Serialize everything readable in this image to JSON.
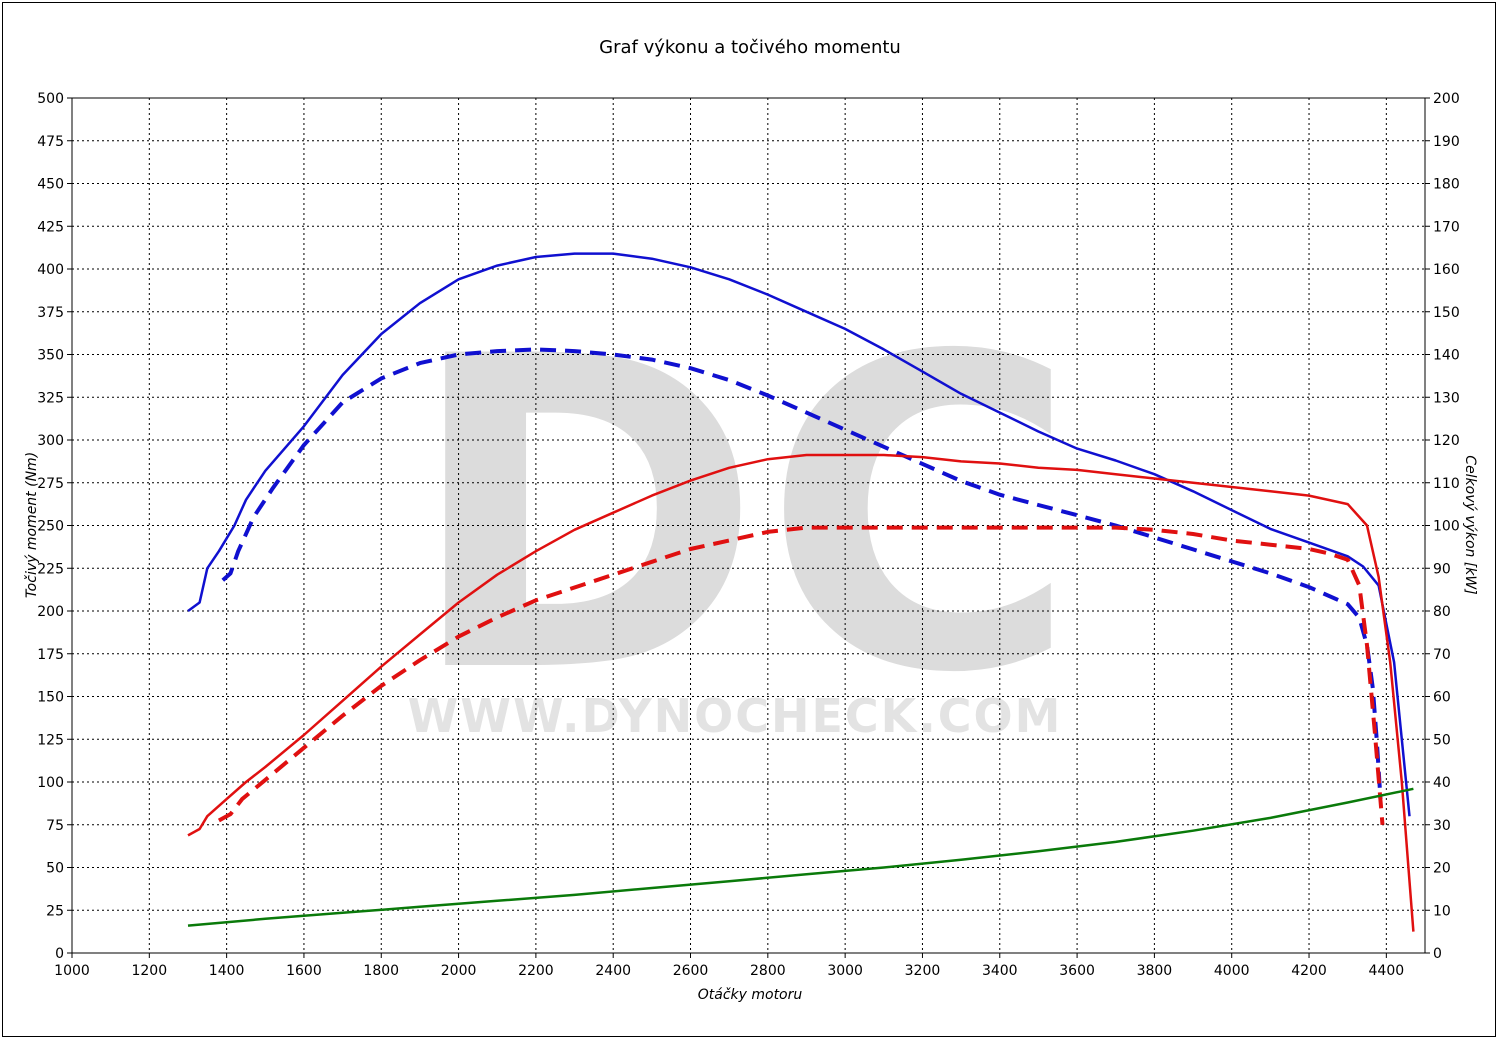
{
  "chart_data": {
    "type": "line",
    "title": "Graf výkonu a točivého momentu",
    "xlabel": "Otáčky motoru",
    "ylabel_left": "Točivý moment (Nm)",
    "ylabel_right": "Celkový výkon [kW]",
    "xlim": [
      1000,
      4500
    ],
    "ylim_left": [
      0,
      500
    ],
    "ylim_right": [
      0,
      200
    ],
    "x_ticks": [
      1000,
      1200,
      1400,
      1600,
      1800,
      2000,
      2200,
      2400,
      2600,
      2800,
      3000,
      3200,
      3400,
      3600,
      3800,
      4000,
      4200,
      4400
    ],
    "y_left_ticks": [
      0,
      25,
      50,
      75,
      100,
      125,
      150,
      175,
      200,
      225,
      250,
      275,
      300,
      325,
      350,
      375,
      400,
      425,
      450,
      475,
      500
    ],
    "y_right_ticks": [
      0,
      10,
      20,
      30,
      40,
      50,
      60,
      70,
      80,
      90,
      100,
      110,
      120,
      130,
      140,
      150,
      160,
      170,
      180,
      190,
      200
    ],
    "grid": true,
    "watermark": "DC",
    "watermark_url": "WWW.DYNOCHECK.COM",
    "colors": {
      "torque": "#1010d0",
      "power": "#e01010",
      "loss": "#0a7a0a"
    },
    "series": [
      {
        "axis": "left",
        "color": "#1010d0",
        "dash": false,
        "x": [
          1300,
          1330,
          1350,
          1380,
          1420,
          1450,
          1500,
          1600,
          1700,
          1800,
          1900,
          2000,
          2100,
          2200,
          2300,
          2400,
          2500,
          2600,
          2700,
          2800,
          2900,
          3000,
          3100,
          3200,
          3300,
          3400,
          3500,
          3600,
          3700,
          3800,
          3900,
          4000,
          4100,
          4200,
          4300,
          4340,
          4380,
          4420,
          4460
        ],
        "y": [
          200,
          205,
          225,
          235,
          250,
          265,
          282,
          308,
          338,
          362,
          380,
          394,
          402,
          407,
          409,
          409,
          406,
          401,
          394,
          385,
          375,
          365,
          353,
          340,
          327,
          316,
          305,
          295,
          288,
          280,
          270,
          259,
          248,
          240,
          232,
          226,
          215,
          170,
          80
        ]
      },
      {
        "axis": "left",
        "color": "#1010d0",
        "dash": true,
        "x": [
          1390,
          1410,
          1430,
          1470,
          1520,
          1600,
          1700,
          1800,
          1900,
          2000,
          2100,
          2200,
          2300,
          2400,
          2500,
          2600,
          2700,
          2800,
          2900,
          3000,
          3100,
          3200,
          3300,
          3400,
          3500,
          3600,
          3700,
          3800,
          3900,
          4000,
          4100,
          4200,
          4300,
          4330,
          4350,
          4365,
          4375,
          4385
        ],
        "y": [
          218,
          222,
          235,
          255,
          272,
          297,
          322,
          336,
          345,
          350,
          352,
          353,
          352,
          350,
          347,
          342,
          335,
          326,
          316,
          306,
          296,
          286,
          276,
          268,
          262,
          256,
          250,
          243,
          236,
          229,
          222,
          214,
          204,
          196,
          180,
          155,
          125,
          90
        ]
      },
      {
        "axis": "right",
        "color": "#e01010",
        "dash": false,
        "x": [
          1300,
          1330,
          1350,
          1400,
          1450,
          1500,
          1600,
          1700,
          1800,
          1900,
          2000,
          2100,
          2200,
          2300,
          2400,
          2500,
          2600,
          2700,
          2800,
          2900,
          3000,
          3100,
          3200,
          3300,
          3400,
          3500,
          3600,
          3700,
          3800,
          3900,
          4000,
          4100,
          4200,
          4300,
          4350,
          4380,
          4410,
          4440,
          4470
        ],
        "y": [
          27.5,
          29,
          32,
          36,
          40,
          43.5,
          51,
          59,
          67,
          74.5,
          82,
          88.5,
          94,
          99,
          103,
          107,
          110.5,
          113.5,
          115.5,
          116.5,
          116.5,
          116.5,
          116,
          115,
          114.5,
          113.5,
          113,
          112,
          111,
          110,
          109,
          108,
          107,
          105,
          100,
          88,
          68,
          40,
          5
        ]
      },
      {
        "axis": "right",
        "color": "#e01010",
        "dash": true,
        "x": [
          1380,
          1410,
          1440,
          1500,
          1600,
          1700,
          1800,
          1900,
          2000,
          2100,
          2200,
          2300,
          2400,
          2500,
          2600,
          2700,
          2800,
          2900,
          3000,
          3100,
          3200,
          3300,
          3400,
          3500,
          3600,
          3700,
          3800,
          3900,
          4000,
          4100,
          4200,
          4250,
          4300,
          4330,
          4350,
          4370,
          4390
        ],
        "y": [
          31,
          32.5,
          36,
          40.5,
          48,
          55.5,
          62.5,
          68.5,
          74,
          78.5,
          82.5,
          85.5,
          88.5,
          91.5,
          94.5,
          96.5,
          98.5,
          99.5,
          99.5,
          99.5,
          99.5,
          99.5,
          99.5,
          99.5,
          99.5,
          99.5,
          99,
          98,
          96.5,
          95.5,
          94.5,
          93.5,
          92,
          86,
          72,
          52,
          30
        ]
      },
      {
        "axis": "left",
        "color": "#0a7a0a",
        "dash": false,
        "x": [
          1300,
          1500,
          1700,
          1900,
          2100,
          2300,
          2500,
          2700,
          2900,
          3100,
          3300,
          3500,
          3700,
          3900,
          4100,
          4300,
          4470
        ],
        "y": [
          16,
          20,
          23.5,
          27,
          30.5,
          34,
          38,
          42,
          46,
          50,
          54.5,
          59.5,
          65,
          71.5,
          79,
          88,
          96
        ]
      }
    ]
  }
}
